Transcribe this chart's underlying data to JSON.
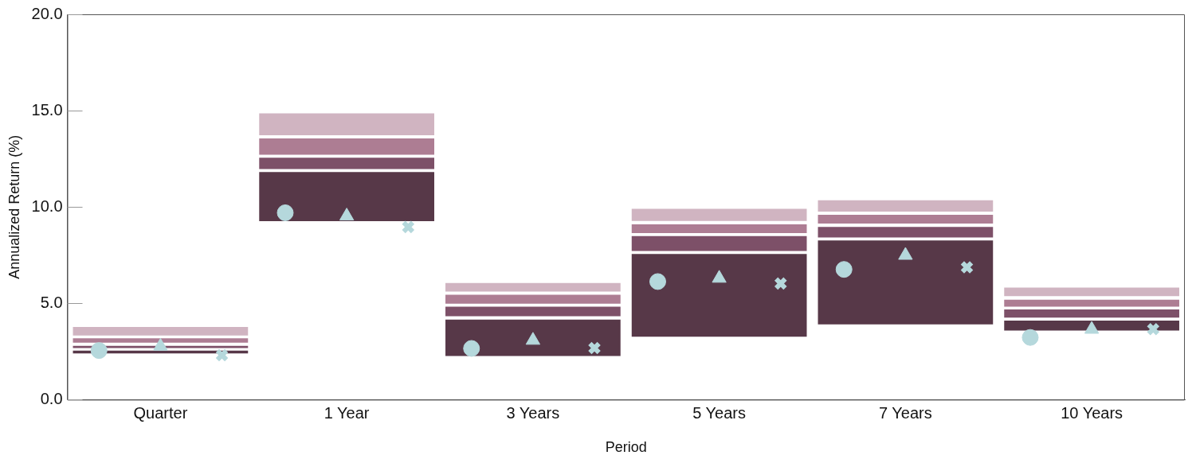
{
  "chart_data": {
    "type": "bar",
    "xlabel": "Period",
    "ylabel": "Annualized Return (%)",
    "categories": [
      "Quarter",
      "1 Year",
      "3 Years",
      "5 Years",
      "7 Years",
      "10 Years"
    ],
    "ylim": [
      0,
      20
    ],
    "yticks": [
      {
        "value": 0,
        "label": "0.0"
      },
      {
        "value": 5,
        "label": "5.0"
      },
      {
        "value": 10,
        "label": "10.0"
      },
      {
        "value": 15,
        "label": "15.0"
      },
      {
        "value": 20,
        "label": "20.0"
      }
    ],
    "grid": false,
    "legend": false,
    "series": [
      {
        "color": "#573848",
        "base": [
          2.4,
          9.27,
          2.27,
          3.27,
          3.91,
          3.59
        ],
        "values": [
          0.15,
          2.54,
          1.89,
          4.29,
          4.35,
          0.51
        ]
      },
      {
        "color": "#7d5068",
        "base": [
          2.68,
          11.97,
          4.33,
          7.72,
          8.42,
          4.26
        ],
        "values": [
          0.11,
          0.59,
          0.5,
          0.77,
          0.55,
          0.42
        ]
      },
      {
        "color": "#ad7d93",
        "base": [
          2.96,
          12.71,
          4.98,
          8.65,
          9.14,
          4.83
        ],
        "values": [
          0.23,
          0.85,
          0.47,
          0.45,
          0.46,
          0.36
        ]
      },
      {
        "color": "#d0b4c1",
        "base": [
          3.33,
          13.72,
          5.61,
          9.28,
          9.76,
          5.37
        ],
        "values": [
          0.44,
          1.14,
          0.45,
          0.63,
          0.59,
          0.45
        ]
      },
      {
        "type": "scatter",
        "marker": "circle",
        "color": "#b5d8dc",
        "x": [
          "Quarter",
          "1 Year",
          "3 Years",
          "5 Years",
          "7 Years",
          "10 Years"
        ],
        "values": [
          2.55,
          9.7,
          2.66,
          6.13,
          6.76,
          3.23
        ]
      },
      {
        "type": "scatter",
        "marker": "triangle",
        "color": "#b5d8dc",
        "x": [
          "Quarter",
          "1 Year",
          "3 Years",
          "5 Years",
          "7 Years",
          "10 Years"
        ],
        "values": [
          2.77,
          9.53,
          3.08,
          6.3,
          7.49,
          3.65
        ]
      },
      {
        "type": "scatter",
        "marker": "cross",
        "color": "#b5d8dc",
        "x": [
          "Quarter",
          "1 Year",
          "3 Years",
          "5 Years",
          "7 Years",
          "10 Years"
        ],
        "values": [
          2.31,
          8.96,
          2.68,
          6.03,
          6.87,
          3.66
        ]
      }
    ]
  }
}
